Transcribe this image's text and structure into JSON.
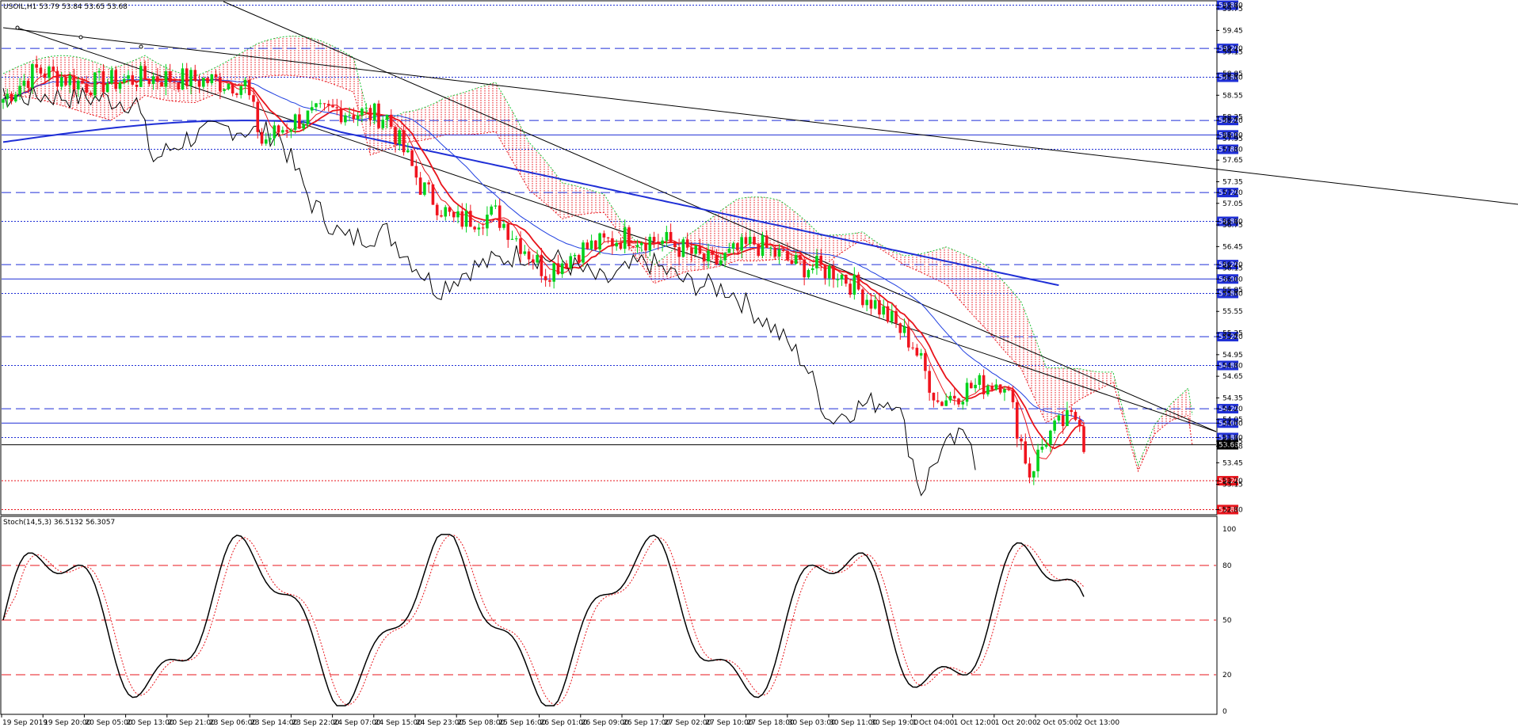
{
  "main": {
    "header": "USOIL,H1  53.79 53.84 53.65 53.68",
    "price_scale": [
      "59.80",
      "59.75",
      "59.45",
      "59.20",
      "59.15",
      "58.80",
      "58.85",
      "58.55",
      "58.20",
      "58.25",
      "58.00",
      "57.95",
      "57.80",
      "57.65",
      "57.35",
      "57.20",
      "57.05",
      "56.80",
      "56.75",
      "56.45",
      "56.20",
      "56.15",
      "56.00",
      "55.80",
      "55.85",
      "55.55",
      "55.20",
      "55.25",
      "54.95",
      "54.80",
      "54.65",
      "54.35",
      "54.20",
      "54.05",
      "54.00",
      "53.80",
      "53.75",
      "53.68",
      "53.45",
      "53.20",
      "53.15",
      "52.80"
    ],
    "level_tags": [
      {
        "label": "59.80",
        "price": 59.8,
        "color": "#1f2fd6",
        "style": "dotted"
      },
      {
        "label": "59.20",
        "price": 59.2,
        "color": "#1f2fd6",
        "style": "dashed"
      },
      {
        "label": "58.80",
        "price": 58.8,
        "color": "#1f2fd6",
        "style": "dotted"
      },
      {
        "label": "58.20",
        "price": 58.2,
        "color": "#1f2fd6",
        "style": "dashed"
      },
      {
        "label": "58.00",
        "price": 58.0,
        "color": "#1f2fd6",
        "style": "solid"
      },
      {
        "label": "57.80",
        "price": 57.8,
        "color": "#1f2fd6",
        "style": "dotted"
      },
      {
        "label": "57.20",
        "price": 57.2,
        "color": "#1f2fd6",
        "style": "dashed"
      },
      {
        "label": "56.80",
        "price": 56.8,
        "color": "#1f2fd6",
        "style": "dotted"
      },
      {
        "label": "56.20",
        "price": 56.2,
        "color": "#1f2fd6",
        "style": "dashed"
      },
      {
        "label": "56.00",
        "price": 56.0,
        "color": "#1f2fd6",
        "style": "solid"
      },
      {
        "label": "55.80",
        "price": 55.8,
        "color": "#1f2fd6",
        "style": "dotted"
      },
      {
        "label": "55.20",
        "price": 55.2,
        "color": "#1f2fd6",
        "style": "dashed"
      },
      {
        "label": "54.80",
        "price": 54.8,
        "color": "#1f2fd6",
        "style": "dotted"
      },
      {
        "label": "54.20",
        "price": 54.2,
        "color": "#1f2fd6",
        "style": "dashed"
      },
      {
        "label": "54.00",
        "price": 54.0,
        "color": "#1f2fd6",
        "style": "solid"
      },
      {
        "label": "53.80",
        "price": 53.8,
        "color": "#1f2fd6",
        "style": "dotted"
      },
      {
        "label": "53.68",
        "price": 53.7,
        "color": "#000000",
        "style": "current"
      },
      {
        "label": "53.20",
        "price": 53.2,
        "color": "#e8141b",
        "style": "dotted"
      },
      {
        "label": "52.80",
        "price": 52.8,
        "color": "#e8141b",
        "style": "dotted"
      }
    ]
  },
  "indicator": {
    "header": "Stoch(14,5,3) 36.5132 56.3057",
    "scale": [
      "100",
      "80",
      "50",
      "20",
      "0"
    ]
  },
  "time_axis": [
    "19 Sep 2019",
    "19 Sep 20:00",
    "20 Sep 05:00",
    "20 Sep 13:00",
    "20 Sep 21:00",
    "23 Sep 06:00",
    "23 Sep 14:00",
    "23 Sep 22:00",
    "24 Sep 07:00",
    "24 Sep 15:00",
    "24 Sep 23:00",
    "25 Sep 08:00",
    "25 Sep 16:00",
    "26 Sep 01:00",
    "26 Sep 09:00",
    "26 Sep 17:00",
    "27 Sep 02:00",
    "27 Sep 10:00",
    "27 Sep 18:00",
    "30 Sep 03:00",
    "30 Sep 11:00",
    "30 Sep 19:00",
    "1 Oct 04:00",
    "1 Oct 12:00",
    "1 Oct 20:00",
    "2 Oct 05:00",
    "2 Oct 13:00"
  ],
  "colors": {
    "bull": "#00d21b",
    "bear": "#f0141e",
    "blue_ma": "#1f2fd6",
    "red_ma": "#e8141b",
    "kijun": "#1f3fe0",
    "chikou": "#000000",
    "cloud": "#e8141b",
    "cloud_edge": "#21c43a",
    "trend": "#000000"
  }
}
